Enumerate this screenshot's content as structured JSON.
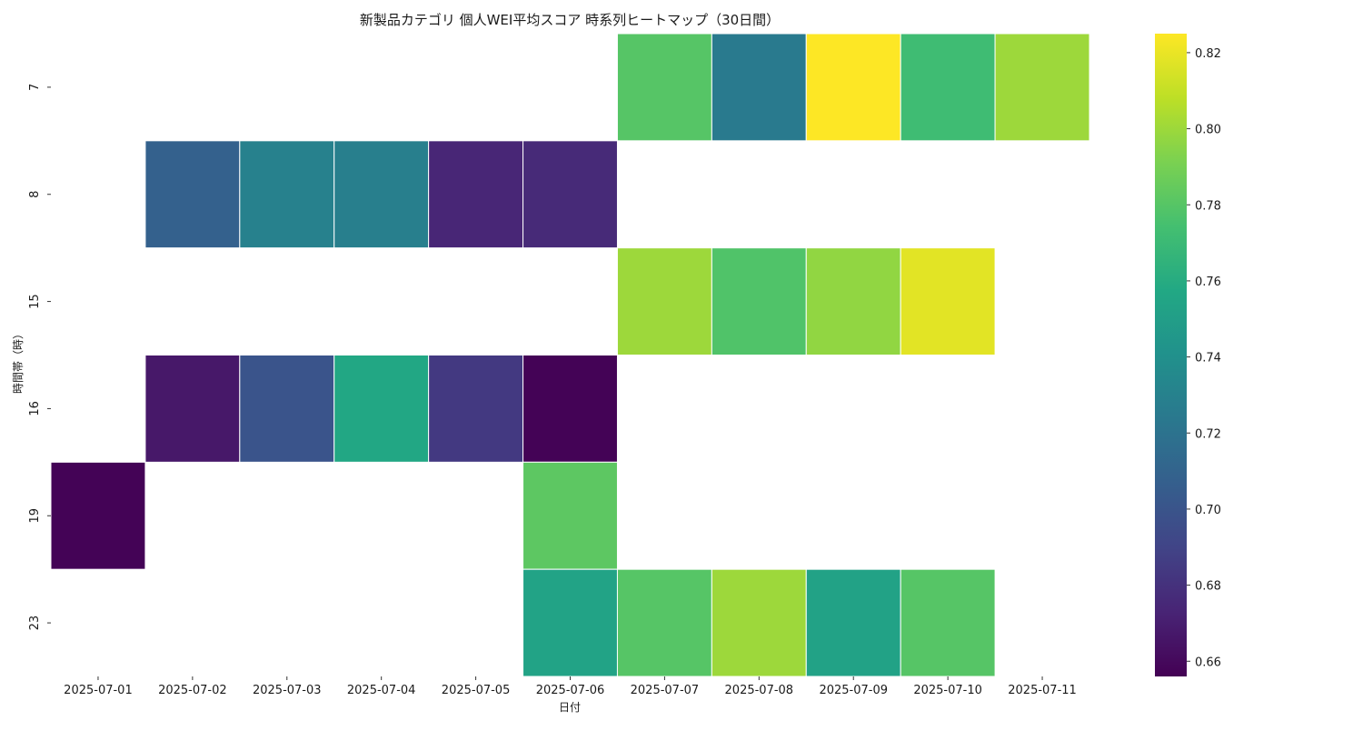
{
  "chart_data": {
    "type": "heatmap",
    "title": "新製品カテゴリ 個人WEI平均スコア 時系列ヒートマップ（30日間）",
    "xlabel": "日付",
    "ylabel": "時間帯（時）",
    "x": [
      "2025-07-01",
      "2025-07-02",
      "2025-07-03",
      "2025-07-04",
      "2025-07-05",
      "2025-07-06",
      "2025-07-07",
      "2025-07-08",
      "2025-07-09",
      "2025-07-10",
      "2025-07-11"
    ],
    "y": [
      "7",
      "8",
      "15",
      "16",
      "19",
      "23"
    ],
    "values": [
      [
        null,
        null,
        null,
        null,
        null,
        null,
        0.78,
        0.725,
        0.825,
        0.772,
        0.8
      ],
      [
        null,
        0.708,
        0.73,
        0.728,
        0.674,
        0.676,
        null,
        null,
        null,
        null,
        null
      ],
      [
        null,
        null,
        null,
        null,
        null,
        null,
        0.8,
        0.778,
        0.797,
        0.818,
        null
      ],
      [
        null,
        0.667,
        0.7,
        0.757,
        0.684,
        0.657,
        null,
        null,
        null,
        null,
        null
      ],
      [
        0.657,
        null,
        null,
        null,
        null,
        0.782,
        null,
        null,
        null,
        null,
        null
      ],
      [
        null,
        null,
        null,
        null,
        null,
        0.754,
        0.78,
        0.8,
        0.753,
        0.78,
        null
      ]
    ],
    "colormap": "viridis",
    "colorbar": {
      "vmin": 0.656,
      "vmax": 0.825,
      "ticks": [
        "0.66",
        "0.68",
        "0.70",
        "0.72",
        "0.74",
        "0.76",
        "0.78",
        "0.80",
        "0.82"
      ]
    },
    "legend": "colorbar-right",
    "grid": false
  }
}
